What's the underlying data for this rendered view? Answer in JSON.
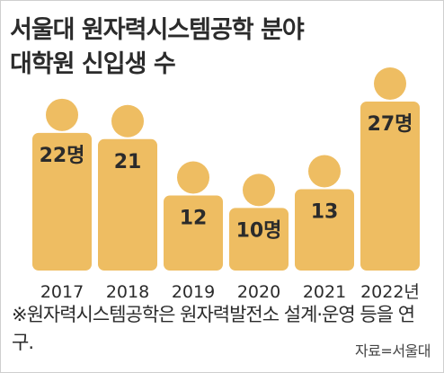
{
  "title_lines": [
    "서울대 원자력시스템공학 분야",
    "대학원 신입생 수"
  ],
  "note": "※원자력시스템공학은 원자력발전소 설계·운영 등을 연구.",
  "source": "자료=서울대",
  "colors": {
    "bar": "#eebd62",
    "head": "#eebd62",
    "text": "#2b2b2b"
  },
  "chart_data": {
    "type": "bar",
    "title": "서울대 원자력시스템공학 분야 대학원 신입생 수",
    "categories": [
      "2017",
      "2018",
      "2019",
      "2020",
      "2021",
      "2022년"
    ],
    "values": [
      22,
      21,
      12,
      10,
      13,
      27
    ],
    "data_labels": [
      "22명",
      "21",
      "12",
      "10명",
      "13",
      "27명"
    ],
    "ylim": [
      0,
      27
    ],
    "grid": false,
    "legend": "none"
  }
}
